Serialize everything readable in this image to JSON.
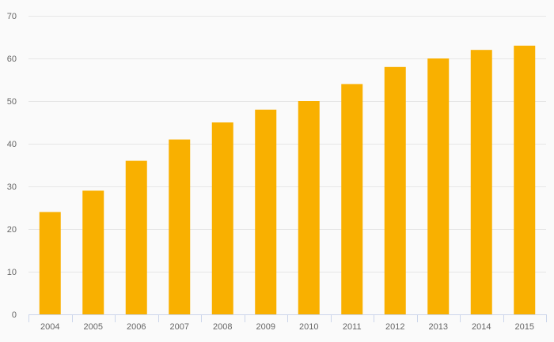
{
  "chart_data": {
    "type": "bar",
    "categories": [
      "2004",
      "2005",
      "2006",
      "2007",
      "2008",
      "2009",
      "2010",
      "2011",
      "2012",
      "2013",
      "2014",
      "2015"
    ],
    "values": [
      24,
      29,
      36,
      41,
      45,
      48,
      50,
      54,
      58,
      60,
      62,
      63
    ],
    "title": "",
    "xlabel": "",
    "ylabel": "",
    "ylim": [
      0,
      70
    ],
    "yticks": [
      0,
      10,
      20,
      30,
      40,
      50,
      60,
      70
    ],
    "grid": true,
    "legend": "none",
    "colors": {
      "bar": "#f9b000",
      "background": "#fafafa",
      "grid": "#e6e6e6",
      "axis": "#ccd6eb",
      "label": "#666666"
    }
  }
}
